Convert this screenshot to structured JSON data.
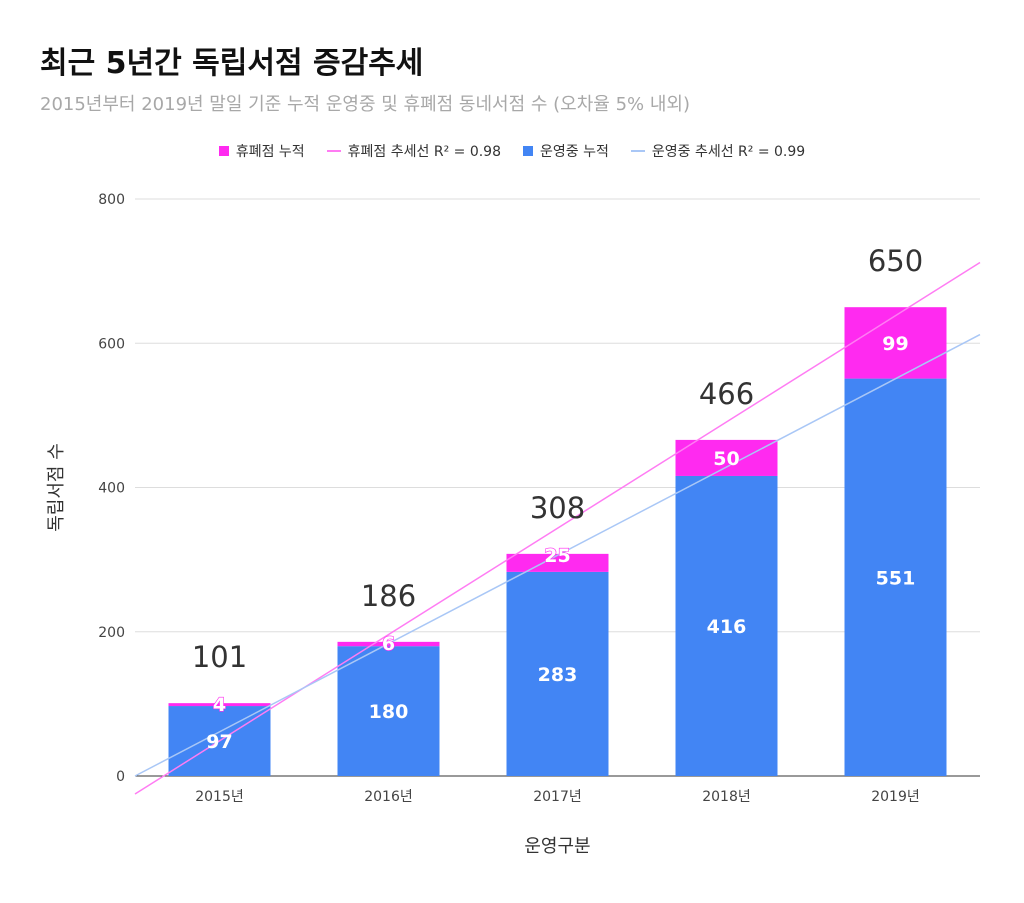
{
  "title": "최근 5년간 독립서점 증감추세",
  "subtitle": "2015년부터 2019년 말일 기준 누적 운영중 및 휴폐점 동네서점 수 (오차율 5% 내외)",
  "legend": [
    {
      "label": "휴폐점 누적",
      "kind": "box",
      "color": "#ff2af0"
    },
    {
      "label": "휴폐점 추세선 R² = 0.98",
      "kind": "line",
      "color": "#ff7cf3"
    },
    {
      "label": "운영중 누적",
      "kind": "box",
      "color": "#4285f4"
    },
    {
      "label": "운영중 추세선 R² = 0.99",
      "kind": "line",
      "color": "#a9c7f6"
    }
  ],
  "chart_data": {
    "type": "bar",
    "stacked": true,
    "categories": [
      "2015년",
      "2016년",
      "2017년",
      "2018년",
      "2019년"
    ],
    "series": [
      {
        "name": "운영중 누적",
        "values": [
          97,
          180,
          283,
          416,
          551
        ],
        "color": "#4285f4"
      },
      {
        "name": "휴폐점 누적",
        "values": [
          4,
          6,
          25,
          50,
          99
        ],
        "color": "#ff2af0"
      }
    ],
    "totals": [
      101,
      186,
      308,
      466,
      650
    ],
    "trendlines": [
      {
        "name": "휴폐점 추세선 R² = 0.98",
        "color": "#ff7cf3",
        "start": -25,
        "end": 712
      },
      {
        "name": "운영중 추세선 R² = 0.99",
        "color": "#a9c7f6",
        "start": 0,
        "end": 612
      }
    ],
    "xlabel": "운영구분",
    "ylabel": "독립서점 수",
    "ylim": [
      0,
      800
    ],
    "yticks": [
      "0",
      "200",
      "400",
      "600",
      "800"
    ],
    "grid": true,
    "legend_position": "top"
  }
}
